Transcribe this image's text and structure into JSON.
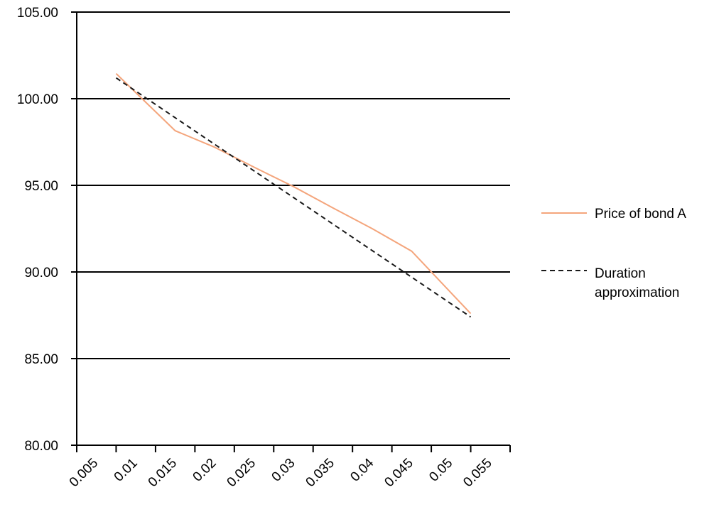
{
  "chart_data": {
    "type": "line",
    "title": "",
    "xlabel": "",
    "ylabel": "",
    "x": [
      0.0075,
      0.0525
    ],
    "x_tick_labels": [
      "0.005",
      "0.01",
      "0.015",
      "0.02",
      "0.025",
      "0.03",
      "0.035",
      "0.04",
      "0.045",
      "0.05",
      "0.055"
    ],
    "y_tick_labels": [
      "80.00",
      "85.00",
      "90.00",
      "95.00",
      "100.00",
      "105.00"
    ],
    "xlim": [
      0.0025,
      0.0575
    ],
    "ylim": [
      80,
      105
    ],
    "grid": "horizontal",
    "legend_position": "right",
    "series": [
      {
        "name": "Price of bond A",
        "style": "solid",
        "color": "#f4a57c",
        "x": [
          0.0075,
          0.01,
          0.015,
          0.02,
          0.025,
          0.03,
          0.035,
          0.04,
          0.045,
          0.05,
          0.0525
        ],
        "values": [
          101.45,
          100.35,
          98.15,
          97.2,
          96.05,
          94.93,
          93.7,
          92.5,
          91.2,
          88.8,
          87.6
        ]
      },
      {
        "name": "Duration approximation",
        "legend_lines": [
          "Duration",
          "approximation"
        ],
        "style": "dashed",
        "color": "#1a1a1a",
        "x": [
          0.0075,
          0.0525
        ],
        "values": [
          101.2,
          87.4
        ]
      }
    ]
  }
}
